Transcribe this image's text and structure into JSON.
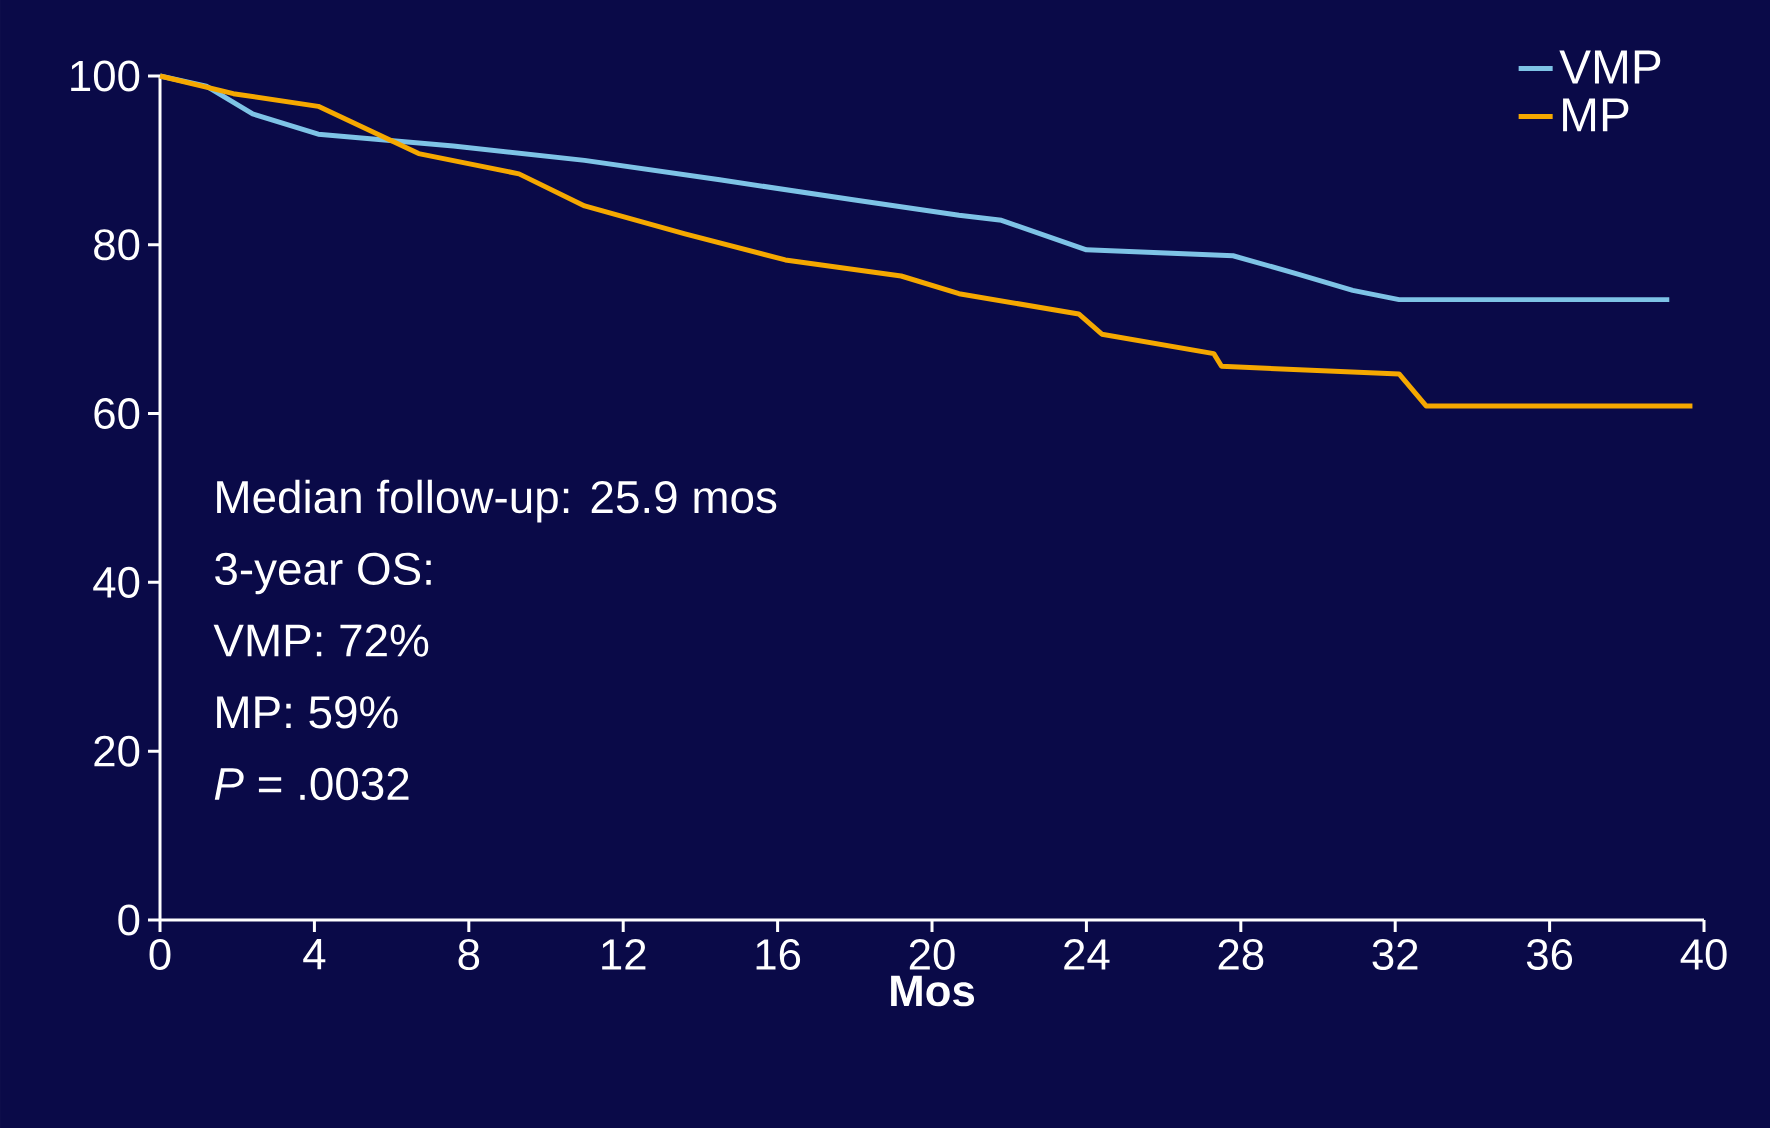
{
  "chart_data": {
    "type": "line",
    "xlabel": "Mos",
    "xlim": [
      0,
      40
    ],
    "ylim": [
      0,
      100
    ],
    "xticks": [
      0,
      4,
      8,
      12,
      16,
      20,
      24,
      28,
      32,
      36,
      40
    ],
    "yticks": [
      0,
      20,
      40,
      60,
      80,
      100
    ],
    "legend": "top right",
    "grid": false,
    "marker": "none",
    "line_style": "solid",
    "annotations": [
      "Median follow-up: 25.9 mos",
      "3-year OS:",
      "VMP: 72%",
      "MP: 59%",
      "*P* = .0032"
    ],
    "series": [
      {
        "name": "VMP",
        "color": "#7ec3e6",
        "x": [
          0,
          1.2,
          2.4,
          4.1,
          7.6,
          11,
          14.5,
          18,
          20.7,
          21.8,
          24,
          27.8,
          29.5,
          30.9,
          32.1,
          39.1
        ],
        "values": [
          100,
          98.8,
          95.5,
          93.1,
          91.7,
          90,
          87.7,
          85.3,
          83.5,
          82.9,
          79.4,
          78.7,
          76.5,
          74.6,
          73.5,
          73.5
        ]
      },
      {
        "name": "MP",
        "color": "#f5a800",
        "x": [
          0,
          1.9,
          4.1,
          6.7,
          9.3,
          11,
          13.6,
          16.2,
          19.2,
          20.7,
          23.8,
          24.4,
          27.3,
          27.5,
          32.1,
          32.8,
          39.7
        ],
        "values": [
          100,
          97.9,
          96.4,
          90.8,
          88.4,
          84.6,
          81.3,
          78.2,
          76.3,
          74.2,
          71.8,
          69.4,
          67.1,
          65.6,
          64.7,
          60.9,
          60.9
        ]
      }
    ]
  }
}
